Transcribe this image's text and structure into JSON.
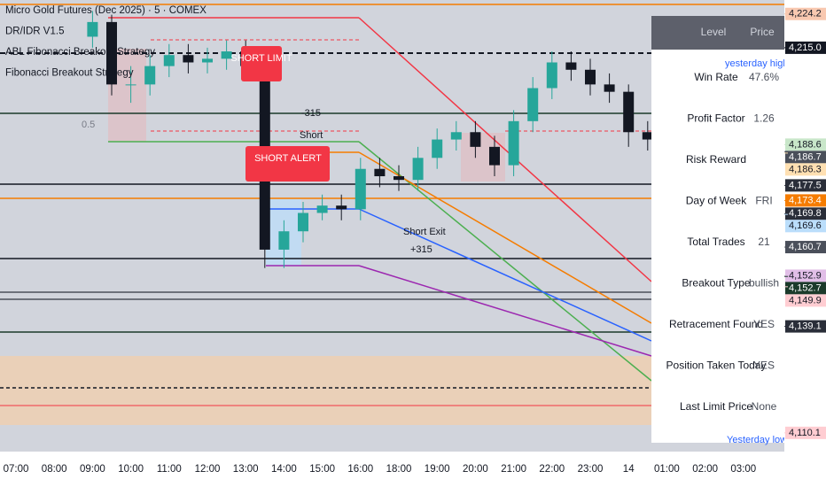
{
  "chart_data": {
    "type": "candlestick",
    "legend_texts": [
      "Micro Gold Futures (Dec 2025) · 5 · COMEX",
      "DR/IDR V1.5",
      "ABL Fibonacci Breakout Strategy",
      "Fibonacci Breakout Strategy"
    ],
    "annotations": [
      "SHORT LIMIT",
      "SHORT ALERT",
      "Short",
      "Short Exit",
      "+315",
      "-315",
      "0.5",
      "yesterday high",
      "Yesterday low"
    ],
    "categories": [
      "07:00",
      null,
      "08:00",
      null,
      "09:00",
      null,
      "10:00",
      null,
      "11:00",
      null,
      "12:00",
      null,
      "13:00",
      null,
      "14:00",
      null,
      "15:00",
      null,
      "16:00",
      null,
      "18:00",
      null,
      "19:00",
      null,
      "20:00",
      null,
      "21:00",
      null,
      "22:00",
      null,
      "23:00",
      null,
      "14",
      null,
      "01:00",
      null,
      "02:00",
      null,
      "03:00",
      null
    ],
    "open": [
      null,
      null,
      null,
      null,
      4218,
      4222,
      4205,
      4205,
      4210,
      4213,
      4211,
      4212,
      4214,
      4210,
      4160,
      4165,
      4170,
      4172,
      4171,
      4182,
      4180,
      4179,
      4185,
      4190,
      4192,
      4188,
      4183,
      4195,
      4204,
      4211,
      4209,
      4205,
      4203,
      4192,
      4190,
      4186,
      4180,
      4172,
      4178,
      4183
    ],
    "high": [
      null,
      null,
      null,
      null,
      4225,
      4224,
      4210,
      4213,
      4216,
      4216,
      4215,
      4217,
      4217,
      4213,
      4168,
      4173,
      4175,
      4175,
      4185,
      4185,
      4183,
      4188,
      4193,
      4195,
      4195,
      4191,
      4198,
      4207,
      4214,
      4214,
      4212,
      4208,
      4205,
      4195,
      4193,
      4189,
      4183,
      4180,
      4186,
      4186
    ],
    "low": [
      null,
      null,
      null,
      null,
      4215,
      4202,
      4200,
      4202,
      4207,
      4208,
      4208,
      4209,
      4207,
      4155,
      4155,
      4162,
      4168,
      4168,
      4168,
      4177,
      4176,
      4176,
      4182,
      4187,
      4185,
      4180,
      4180,
      4192,
      4201,
      4206,
      4202,
      4200,
      4188,
      4187,
      4183,
      4176,
      4168,
      4168,
      4175,
      4177
    ],
    "close": [
      null,
      null,
      null,
      null,
      4222,
      4205,
      4205,
      4210,
      4213,
      4211,
      4212,
      4214,
      4210,
      4160,
      4165,
      4170,
      4172,
      4171,
      4182,
      4180,
      4179,
      4185,
      4190,
      4192,
      4188,
      4183,
      4195,
      4204,
      4211,
      4209,
      4205,
      4203,
      4192,
      4190,
      4186,
      4180,
      4172,
      4178,
      4183,
      4180
    ],
    "up_color": "#26a69a",
    "down_color": "#131722",
    "ylim": [
      4105,
      4228
    ],
    "price_labels": [
      {
        "value": 4224.2,
        "label": "4,224.2",
        "color": "#f8c8b0"
      },
      {
        "value": 4215.0,
        "label": "4,215.0",
        "color": "#131722"
      },
      {
        "value": 4188.6,
        "label": "4,188.6",
        "color": "#c8e6c9"
      },
      {
        "value": 4186.7,
        "label": "4,186.7",
        "color": "#4a4f5a"
      },
      {
        "value": 4186.3,
        "label": "4,186.3",
        "color": "#ffe0b2"
      },
      {
        "value": 4177.5,
        "label": "4,177.5",
        "color": "#2a2e39"
      },
      {
        "value": 4173.4,
        "label": "4,173.4",
        "color": "#f57c00"
      },
      {
        "value": 4169.8,
        "label": "4,169.8",
        "color": "#2a2e39"
      },
      {
        "value": 4169.6,
        "label": "4,169.6",
        "color": "#bbdefb"
      },
      {
        "value": 4160.7,
        "label": "4,160.7",
        "color": "#4a4f5a"
      },
      {
        "value": 4152.9,
        "label": "4,152.9",
        "color": "#e1bee7"
      },
      {
        "value": 4152.7,
        "label": "4,152.7",
        "color": "#1b3a2a"
      },
      {
        "value": 4149.9,
        "label": "4,149.9",
        "color": "#ffcdd2"
      },
      {
        "value": 4139.1,
        "label": "4,139.1",
        "color": "#2a2e39"
      },
      {
        "value": 4110.1,
        "label": "4,110.1",
        "color": "#ffcdd2"
      }
    ],
    "table": {
      "header": [
        "Level",
        "Price"
      ],
      "rows": [
        [
          "Win Rate",
          "47.6%"
        ],
        [
          "Profit Factor",
          "1.26"
        ],
        [
          "Risk Reward",
          ""
        ],
        [
          "Day of Week",
          "FRI"
        ],
        [
          "Total Trades",
          "21"
        ],
        [
          "Breakout Type",
          "bullish"
        ],
        [
          "Retracement Found",
          "YES"
        ],
        [
          "Position Taken Today",
          "YES"
        ],
        [
          "Last Limit Price",
          "None"
        ]
      ]
    }
  }
}
